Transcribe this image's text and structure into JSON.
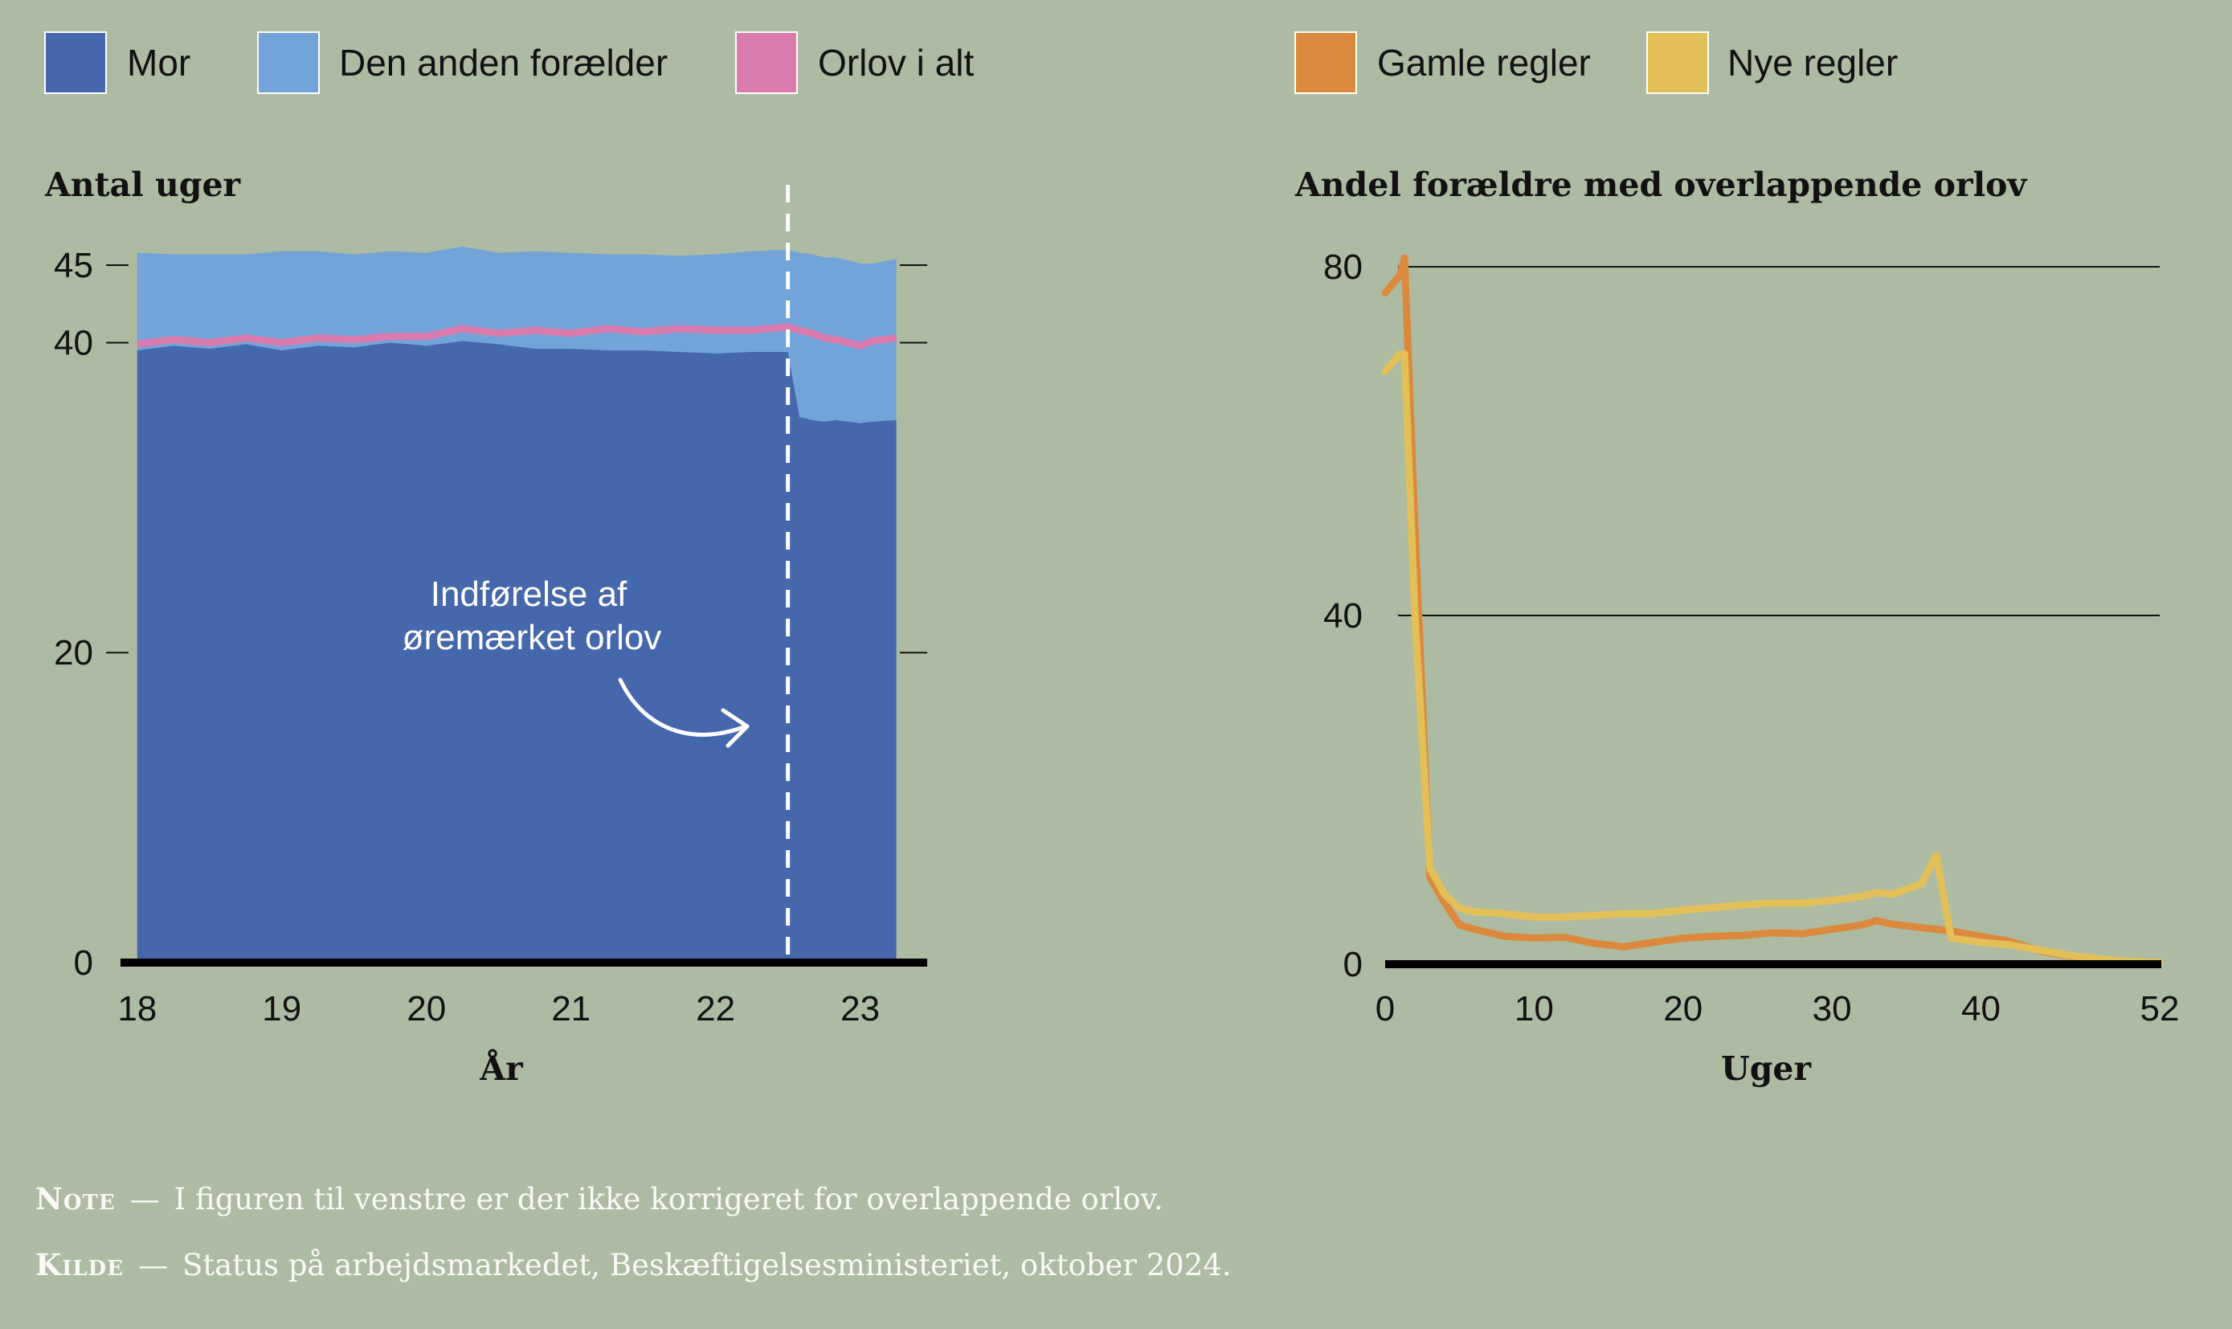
{
  "legend": [
    {
      "label": "Mor",
      "color": "#4567ab"
    },
    {
      "label": "Den anden forælder",
      "color": "#72a4da"
    },
    {
      "label": "Orlov i alt",
      "color": "#d97bad"
    },
    {
      "label": "Gamle regler",
      "color": "#db8a3d"
    },
    {
      "label": "Nye regler",
      "color": "#e3bf57"
    }
  ],
  "annotation": {
    "line1": "Indførelse af",
    "line2": "øremærket orlov"
  },
  "footer": {
    "note_label": "Note",
    "note_text": "I figuren til venstre er der ikke korrigeret for overlappende orlov.",
    "source_label": "Kilde",
    "source_text": "Status på arbejdsmarkedet, Beskæftigelsesministeriet, oktober 2024."
  },
  "chart_data": [
    {
      "type": "area",
      "title": "Antal uger",
      "xlabel": "År",
      "ylabel": "Antal uger",
      "xlim": [
        17.94,
        23.33
      ],
      "ylim": [
        0,
        45
      ],
      "yticks": [
        0,
        20,
        40,
        45
      ],
      "xticks": [
        18,
        19,
        20,
        21,
        22,
        23
      ],
      "grid": false,
      "legend_position": "top-left",
      "reference_line": {
        "x": 22.5,
        "style": "dashed",
        "label": "Indførelse af øremærket orlov"
      },
      "x": [
        18.0,
        18.25,
        18.5,
        18.75,
        19.0,
        19.25,
        19.5,
        19.75,
        20.0,
        20.25,
        20.5,
        20.75,
        21.0,
        21.25,
        21.5,
        21.75,
        22.0,
        22.25,
        22.5,
        22.58,
        22.67,
        22.75,
        22.83,
        22.92,
        23.0,
        23.08,
        23.25
      ],
      "series": [
        {
          "name": "Mor",
          "values": [
            39.5,
            39.8,
            39.6,
            39.9,
            39.5,
            39.8,
            39.7,
            40.0,
            39.8,
            40.1,
            39.9,
            39.6,
            39.6,
            39.5,
            39.5,
            39.4,
            39.3,
            39.4,
            39.4,
            35.2,
            35.0,
            34.9,
            35.0,
            34.9,
            34.8,
            34.9,
            35.0
          ]
        },
        {
          "name": "Den anden forælder",
          "values": [
            6.3,
            5.9,
            6.1,
            5.8,
            6.4,
            6.1,
            6.0,
            5.9,
            6.0,
            6.1,
            5.9,
            6.3,
            6.2,
            6.2,
            6.2,
            6.2,
            6.4,
            6.5,
            6.6,
            10.6,
            10.7,
            10.6,
            10.5,
            10.4,
            10.3,
            10.2,
            10.4
          ]
        },
        {
          "name": "Orlov i alt",
          "values": [
            39.9,
            40.2,
            40.0,
            40.3,
            40.0,
            40.3,
            40.2,
            40.4,
            40.4,
            40.9,
            40.6,
            40.8,
            40.6,
            40.9,
            40.7,
            40.9,
            40.8,
            40.8,
            41.0,
            40.8,
            40.6,
            40.3,
            40.2,
            40.0,
            39.8,
            40.1,
            40.3
          ]
        }
      ]
    },
    {
      "type": "line",
      "title": "Andel forældre med overlappende orlov",
      "xlabel": "Uger",
      "ylabel": "Andel forældre med overlappende orlov",
      "xlim": [
        0,
        52
      ],
      "ylim": [
        0,
        80
      ],
      "xticks": [
        0,
        10,
        20,
        30,
        40,
        52
      ],
      "yticks": [
        0,
        40,
        80
      ],
      "grid": true,
      "legend_position": "top",
      "x": [
        0,
        1,
        1.3,
        2,
        3,
        4,
        5,
        6,
        8,
        10,
        12,
        14,
        16,
        18,
        20,
        22,
        24,
        26,
        28,
        30,
        32,
        33,
        34,
        36,
        37,
        38,
        40,
        42,
        44,
        46,
        48,
        50,
        52
      ],
      "series": [
        {
          "name": "Gamle regler",
          "values": [
            77,
            79,
            81,
            50,
            10,
            7,
            4.5,
            4,
            3.2,
            3.0,
            3.1,
            2.4,
            2.0,
            2.5,
            3.0,
            3.2,
            3.3,
            3.6,
            3.5,
            4.0,
            4.5,
            5.0,
            4.6,
            4.2,
            4.0,
            3.8,
            3.2,
            2.6,
            1.5,
            0.9,
            0.5,
            0.3,
            0.2
          ]
        },
        {
          "name": "Nye regler",
          "values": [
            68,
            70,
            70,
            40,
            11,
            8,
            6.4,
            6,
            5.8,
            5.4,
            5.4,
            5.6,
            5.8,
            5.8,
            6.2,
            6.5,
            6.8,
            7.0,
            7.0,
            7.3,
            7.8,
            8.2,
            8.0,
            9.2,
            12.5,
            3.0,
            2.5,
            2.2,
            1.6,
            1.0,
            0.6,
            0.3,
            0.2
          ]
        }
      ]
    }
  ]
}
